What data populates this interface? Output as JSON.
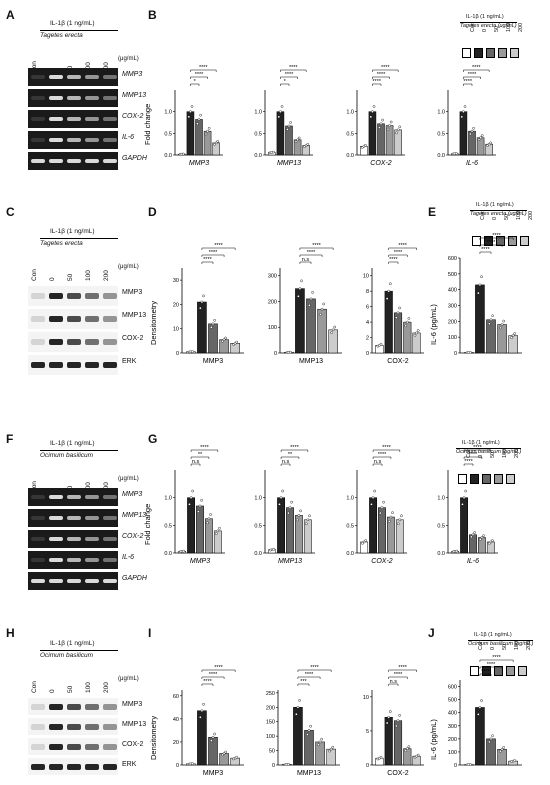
{
  "letters": [
    "A",
    "B",
    "C",
    "D",
    "E",
    "F",
    "G",
    "H",
    "I",
    "J"
  ],
  "treatment": "IL-1β (1 ng/mL)",
  "agents": {
    "tagetes": "Tagetes erecta",
    "ocimum": "Ocimum basilicum"
  },
  "lanes": [
    "Con",
    "0",
    "50",
    "100",
    "200"
  ],
  "unit": "(μg/mL)",
  "legend_top_B": {
    "line1": "IL-1β (1 ng/mL)",
    "line2": "Tagetes erecta (μg/mL)"
  },
  "legend_top_E": {
    "line1": "IL-1β (1 ng/mL)",
    "line2": "Tagetes erecta (μg/mL)"
  },
  "legend_top_G": {
    "line1": "IL-1β (1 ng/mL)",
    "line2": "Ocimum  basilicum (μg/mL)"
  },
  "legend_top_J": {
    "line1": "IL-1β (1 ng/mL)",
    "line2": "Ocimum  basilicum (μg/mL)"
  },
  "legend_labels": [
    "Con",
    "0",
    "50",
    "100",
    "200"
  ],
  "genes_A": [
    "MMP3",
    "MMP13",
    "COX-2",
    "IL-6",
    "GAPDH"
  ],
  "proteins_C": [
    "MMP3",
    "MMP13",
    "COX-2",
    "ERK"
  ],
  "genes_F": [
    "MMP3",
    "MMP13",
    "COX-2",
    "IL-6",
    "GAPDH"
  ],
  "proteins_H": [
    "MMP3",
    "MMP13",
    "COX-2",
    "ERK"
  ],
  "ylabels": {
    "fold": "Fold change",
    "dens": "Densitometry",
    "il6": "IL-6 (pg/mL)"
  },
  "colors": {
    "con": "#ffffff",
    "zero": "#222222",
    "c50": "#666666",
    "c100": "#999999",
    "c200": "#cccccc"
  },
  "chart_data": [
    {
      "panel": "B",
      "type": "bar",
      "xlabel": "MMP3",
      "ylim": [
        0,
        1.5
      ],
      "ticks": [
        "0.0",
        "0.5",
        "1.0"
      ],
      "values": [
        0.02,
        1.0,
        0.82,
        0.55,
        0.28
      ],
      "sig": [
        "*",
        "****",
        "****"
      ]
    },
    {
      "panel": "B",
      "type": "bar",
      "xlabel": "MMP13",
      "ylim": [
        0,
        1.5
      ],
      "ticks": [
        "0.0",
        "0.5",
        "1.0"
      ],
      "values": [
        0.06,
        1.0,
        0.67,
        0.35,
        0.22
      ],
      "sig": [
        "*",
        "****",
        "****"
      ]
    },
    {
      "panel": "B",
      "type": "bar",
      "xlabel": "COX-2",
      "ylim": [
        0,
        1.5
      ],
      "ticks": [
        "0.0",
        "0.5",
        "1.0"
      ],
      "values": [
        0.2,
        1.0,
        0.72,
        0.68,
        0.58
      ],
      "sig": [
        "****",
        "****",
        "****"
      ]
    },
    {
      "panel": "B",
      "type": "bar",
      "xlabel": "IL-6",
      "ylim": [
        0,
        1.5
      ],
      "ticks": [
        "0.0",
        "0.5",
        "1.0"
      ],
      "values": [
        0.03,
        1.0,
        0.55,
        0.4,
        0.25
      ],
      "sig": [
        "****",
        "****",
        "****"
      ]
    },
    {
      "panel": "D",
      "type": "bar",
      "xlabel": "MMP3",
      "ylim": [
        0,
        35
      ],
      "ticks": [
        "0",
        "10",
        "20",
        "30"
      ],
      "values": [
        0.5,
        21,
        12,
        5.5,
        4
      ],
      "sig": [
        "****",
        "****",
        "****"
      ]
    },
    {
      "panel": "D",
      "type": "bar",
      "xlabel": "MMP13",
      "ylim": [
        0,
        330
      ],
      "ticks": [
        "0",
        "100",
        "200",
        "300"
      ],
      "values": [
        3,
        250,
        210,
        170,
        90
      ],
      "sig": [
        "n.s",
        "****",
        "****"
      ]
    },
    {
      "panel": "D",
      "type": "bar",
      "xlabel": "COX-2",
      "ylim": [
        0,
        11
      ],
      "ticks": [
        "0",
        "2",
        "4",
        "6",
        "8",
        "10"
      ],
      "values": [
        1,
        8,
        5.2,
        4,
        2.6
      ],
      "sig": [
        "****",
        "****",
        "****"
      ]
    },
    {
      "panel": "E",
      "type": "bar",
      "xlabel": "",
      "ylim": [
        0,
        600
      ],
      "ticks": [
        "0",
        "100",
        "200",
        "300",
        "400",
        "500",
        "600"
      ],
      "values": [
        3,
        430,
        210,
        180,
        110
      ],
      "sig": [
        "****",
        "****",
        "****"
      ]
    },
    {
      "panel": "G",
      "type": "bar",
      "xlabel": "MMP3",
      "ylim": [
        0,
        1.5
      ],
      "ticks": [
        "0.0",
        "0.5",
        "1.0"
      ],
      "values": [
        0.03,
        1.0,
        0.85,
        0.62,
        0.4
      ],
      "sig": [
        "n.s",
        "**",
        "****"
      ]
    },
    {
      "panel": "G",
      "type": "bar",
      "xlabel": "MMP13",
      "ylim": [
        0,
        1.5
      ],
      "ticks": [
        "0.0",
        "0.5",
        "1.0"
      ],
      "values": [
        0.06,
        1.0,
        0.82,
        0.68,
        0.6
      ],
      "sig": [
        "n.s",
        "**",
        "****"
      ]
    },
    {
      "panel": "G",
      "type": "bar",
      "xlabel": "COX-2",
      "ylim": [
        0,
        1.5
      ],
      "ticks": [
        "0.0",
        "0.5",
        "1.0"
      ],
      "values": [
        0.2,
        1.0,
        0.82,
        0.65,
        0.6
      ],
      "sig": [
        "n.s",
        "****",
        "****"
      ]
    },
    {
      "panel": "G",
      "type": "bar",
      "xlabel": "IL-6",
      "ylim": [
        0,
        1.5
      ],
      "ticks": [
        "0.0",
        "0.5",
        "1.0"
      ],
      "values": [
        0.03,
        1.0,
        0.33,
        0.28,
        0.2
      ],
      "sig": [
        "****",
        "****",
        "****"
      ]
    },
    {
      "panel": "I",
      "type": "bar",
      "xlabel": "MMP3",
      "ylim": [
        0,
        65
      ],
      "ticks": [
        "0",
        "20",
        "40",
        "60"
      ],
      "values": [
        1,
        47,
        24,
        10,
        6
      ],
      "sig": [
        "****",
        "****",
        "****"
      ]
    },
    {
      "panel": "I",
      "type": "bar",
      "xlabel": "MMP13",
      "ylim": [
        0,
        260
      ],
      "ticks": [
        "0",
        "50",
        "100",
        "150",
        "200",
        "250"
      ],
      "values": [
        2,
        200,
        120,
        80,
        55
      ],
      "sig": [
        "***",
        "****",
        "****"
      ]
    },
    {
      "panel": "I",
      "type": "bar",
      "xlabel": "COX-2",
      "ylim": [
        0,
        11
      ],
      "ticks": [
        "0",
        "5",
        "10"
      ],
      "values": [
        1,
        7,
        6.5,
        2.4,
        1.3
      ],
      "sig": [
        "n.s",
        "****",
        "****"
      ]
    },
    {
      "panel": "J",
      "type": "bar",
      "xlabel": "",
      "ylim": [
        0,
        650
      ],
      "ticks": [
        "0",
        "100",
        "200",
        "300",
        "400",
        "500",
        "600"
      ],
      "values": [
        3,
        440,
        200,
        120,
        30
      ],
      "sig": [
        "****",
        "****",
        "****"
      ]
    }
  ]
}
